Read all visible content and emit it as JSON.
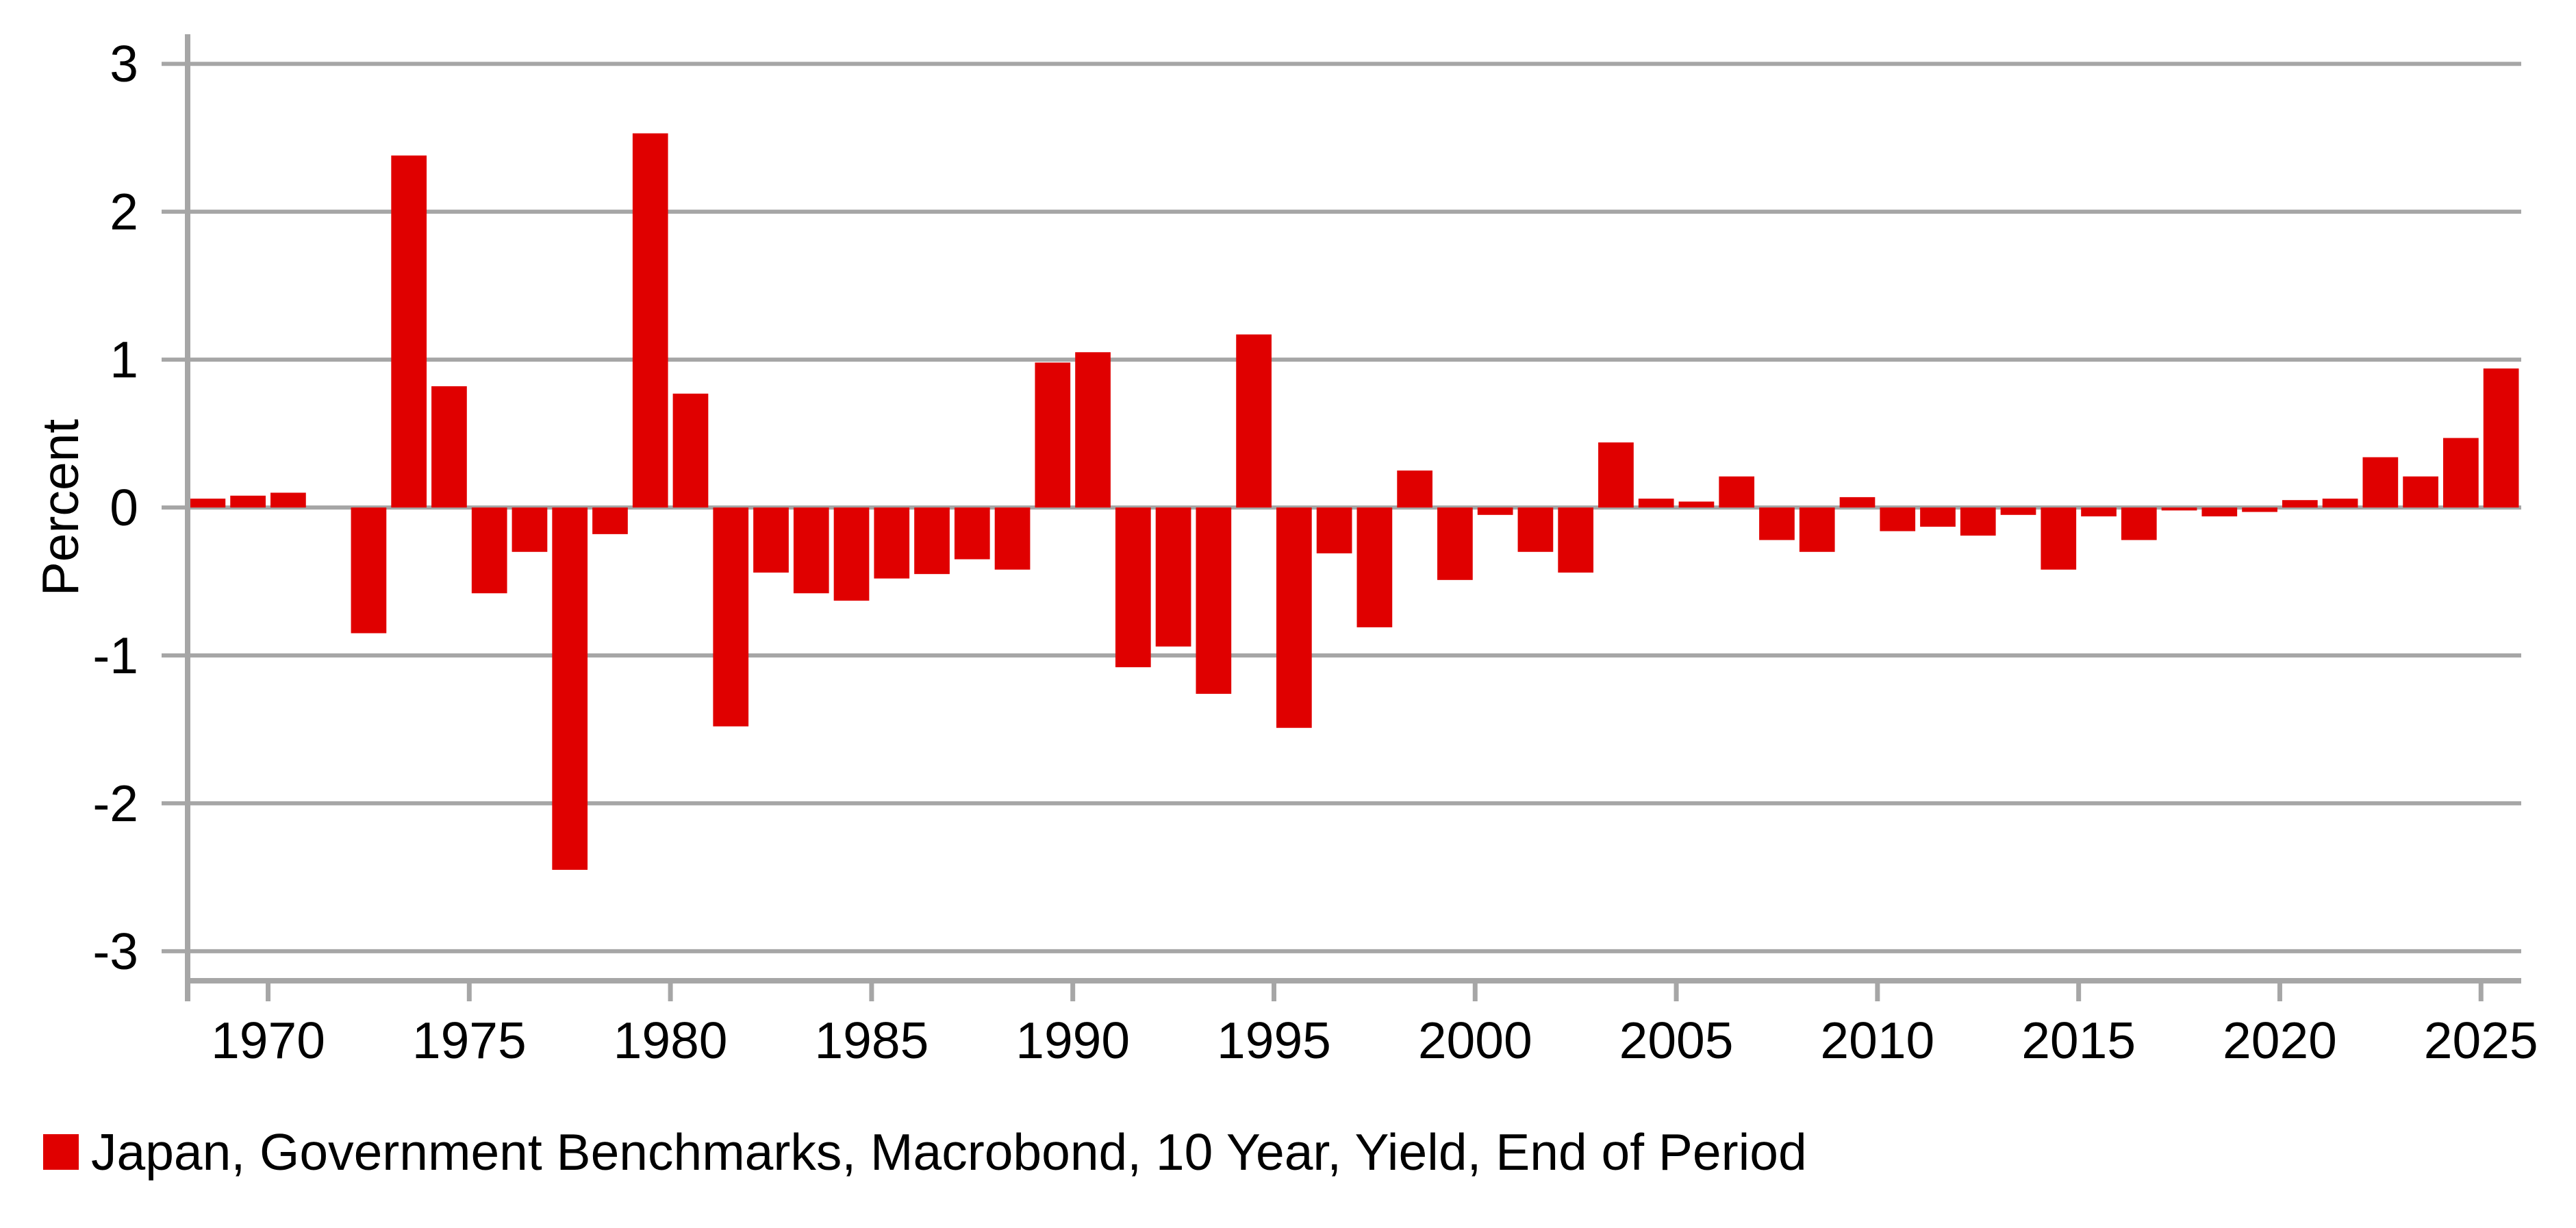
{
  "chart_data": {
    "type": "bar",
    "title": "",
    "ylabel": "Percent",
    "legend_label": "Japan, Government Benchmarks, Macrobond, 10 Year, Yield, End of Period",
    "legend_position": "bottom-left",
    "bar_color": "#e00000",
    "axis_color": "#a6a6a6",
    "text_color": "#000000",
    "grid": true,
    "xlim": [
      1968,
      2026
    ],
    "ylim": [
      -3.2,
      3.2
    ],
    "x_ticks": [
      1970,
      1975,
      1980,
      1985,
      1990,
      1995,
      2000,
      2005,
      2010,
      2015,
      2020,
      2025
    ],
    "y_ticks": [
      3,
      2,
      1,
      0,
      -1,
      -2,
      -3
    ],
    "years": [
      1968,
      1969,
      1970,
      1971,
      1972,
      1973,
      1974,
      1975,
      1976,
      1977,
      1978,
      1979,
      1980,
      1981,
      1982,
      1983,
      1984,
      1985,
      1986,
      1987,
      1988,
      1989,
      1990,
      1991,
      1992,
      1993,
      1994,
      1995,
      1996,
      1997,
      1998,
      1999,
      2000,
      2001,
      2002,
      2003,
      2004,
      2005,
      2006,
      2007,
      2008,
      2009,
      2010,
      2011,
      2012,
      2013,
      2014,
      2015,
      2016,
      2017,
      2018,
      2019,
      2020,
      2021,
      2022,
      2023,
      2024,
      2025
    ],
    "values": [
      0.06,
      0.08,
      0.1,
      0,
      -0.85,
      2.38,
      0.82,
      -0.58,
      -0.3,
      -2.45,
      -0.18,
      2.53,
      0.77,
      -1.48,
      -0.44,
      -0.58,
      -0.63,
      -0.48,
      -0.45,
      -0.35,
      -0.42,
      0.98,
      1.05,
      -1.08,
      -0.94,
      -1.26,
      1.17,
      -1.49,
      -0.31,
      -0.81,
      0.25,
      -0.49,
      -0.05,
      -0.3,
      -0.44,
      0.44,
      0.06,
      0.04,
      0.21,
      -0.22,
      -0.3,
      0.07,
      -0.16,
      -0.13,
      -0.19,
      -0.05,
      -0.42,
      -0.06,
      -0.22,
      -0.02,
      -0.06,
      -0.03,
      0.05,
      0.06,
      0.34,
      0.21,
      0.47,
      0.94
    ]
  }
}
